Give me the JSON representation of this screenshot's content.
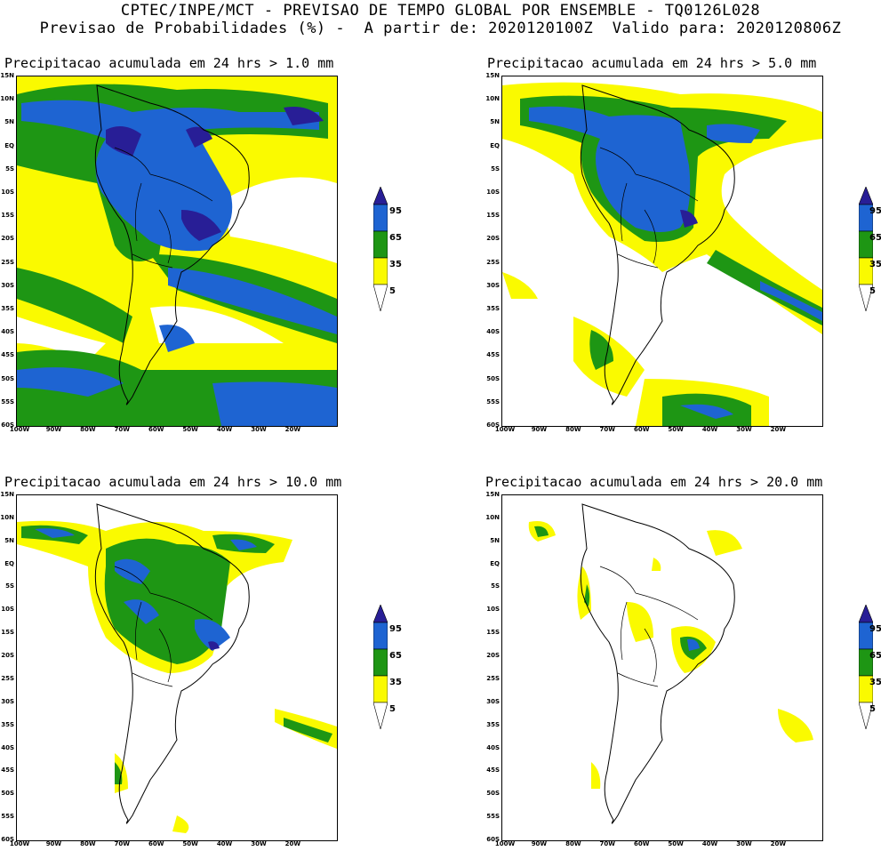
{
  "header": {
    "line1": "CPTEC/INPE/MCT - PREVISAO DE TEMPO GLOBAL POR ENSEMBLE - TQ0126L028",
    "line2": "Previsao de Probabilidades (%) -  A partir de: 2020120100Z  Valido para: 2020120806Z"
  },
  "panels": [
    {
      "title": "Precipitacao acumulada em 24 hrs > 1.0 mm"
    },
    {
      "title": "Precipitacao acumulada em 24 hrs > 5.0 mm"
    },
    {
      "title": "Precipitacao acumulada em 24 hrs > 10.0 mm"
    },
    {
      "title": "Precipitacao acumulada em 24 hrs > 20.0 mm"
    }
  ],
  "axes": {
    "lat": [
      "15N",
      "10N",
      "5N",
      "EQ",
      "5S",
      "10S",
      "15S",
      "20S",
      "25S",
      "30S",
      "35S",
      "40S",
      "45S",
      "50S",
      "55S",
      "60S"
    ],
    "lon": [
      "100W",
      "90W",
      "80W",
      "70W",
      "60W",
      "50W",
      "40W",
      "30W",
      "20W"
    ]
  },
  "colorbar": {
    "labels": [
      "95",
      "65",
      "35",
      "5"
    ],
    "colors": {
      "c5": "#fafa00",
      "c35": "#1e9614",
      "c65": "#1e64d2",
      "c95": "#281e96"
    }
  }
}
